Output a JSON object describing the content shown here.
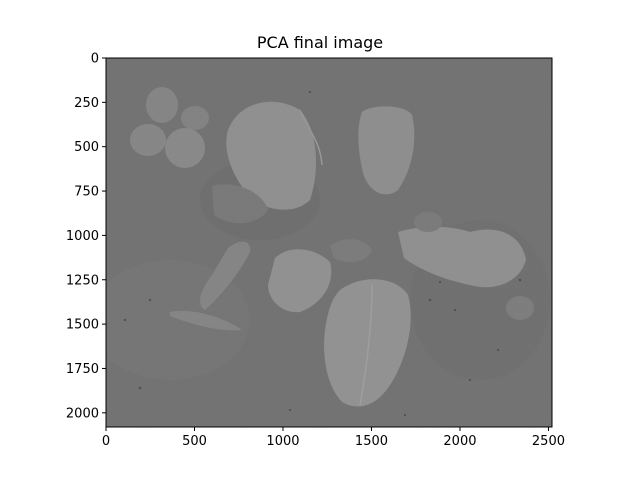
{
  "figure": {
    "title": "PCA final image",
    "x_ticks": [
      "0",
      "500",
      "1000",
      "1500",
      "2000",
      "2500"
    ],
    "y_ticks": [
      "0",
      "250",
      "500",
      "750",
      "1000",
      "1250",
      "1500",
      "1750",
      "2000"
    ],
    "x_range": [
      0,
      2520
    ],
    "y_range": [
      0,
      2080
    ],
    "colormap": "gray",
    "image_description": "grayscale PCA component of a top-down plant photograph showing several broad leaves"
  }
}
